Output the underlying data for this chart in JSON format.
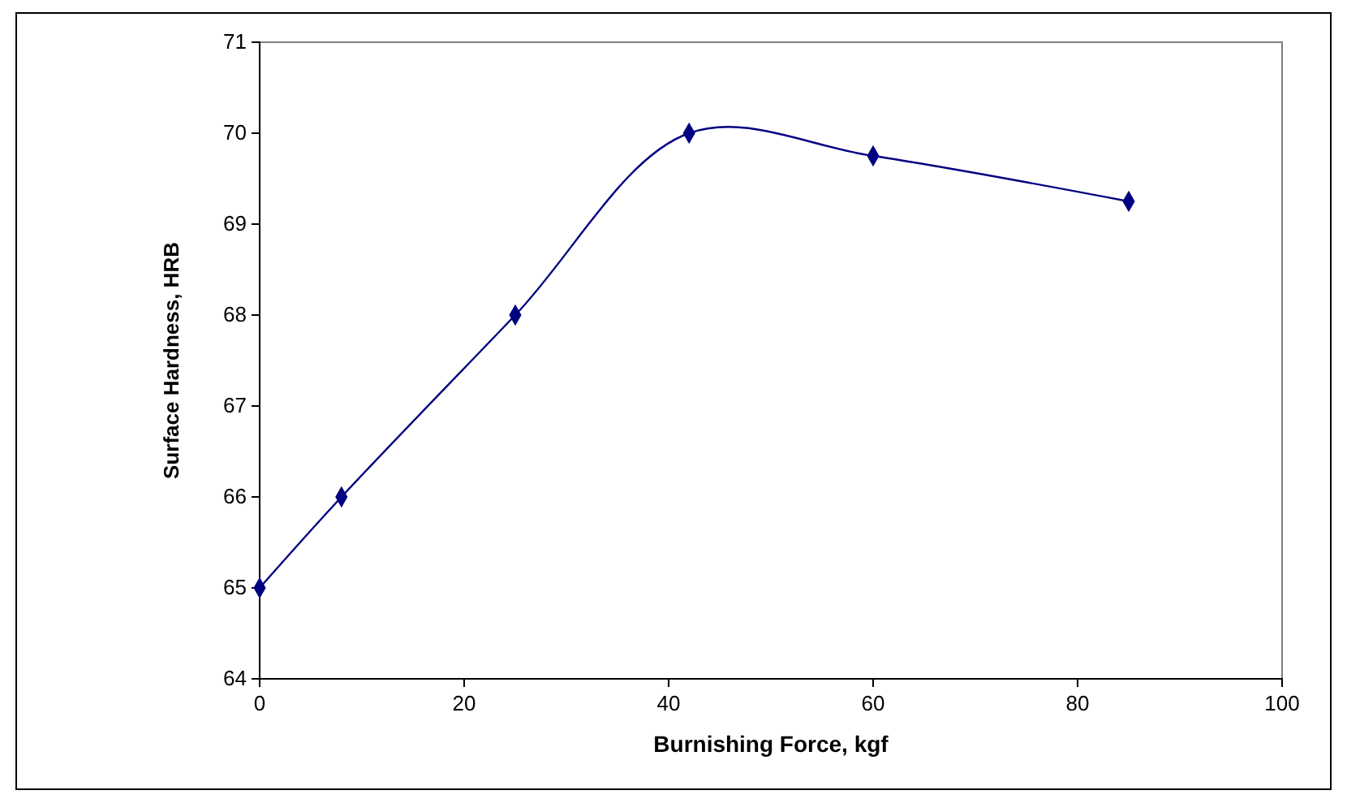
{
  "chart_data": {
    "type": "line",
    "xlabel": "Burnishing Force, kgf",
    "ylabel": "Surface Hardness, HRB",
    "x": [
      0,
      8,
      25,
      42,
      60,
      85
    ],
    "series": [
      {
        "color": "#000080",
        "values": [
          65,
          66,
          68,
          70,
          69.75,
          69.25
        ]
      }
    ],
    "xlim": [
      0,
      100
    ],
    "xticks": [
      0,
      20,
      40,
      60,
      80,
      100
    ],
    "ylim": [
      64,
      71
    ],
    "yticks": [
      64,
      65,
      66,
      67,
      68,
      69,
      70,
      71
    ],
    "grid": false,
    "marker": "diamond",
    "line_style": "solid"
  }
}
